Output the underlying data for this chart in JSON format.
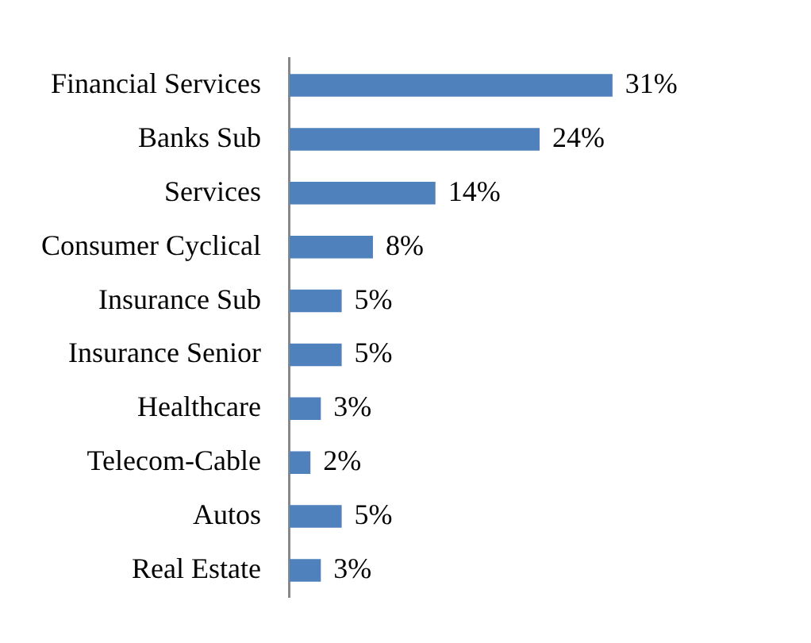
{
  "chart_data": {
    "type": "bar",
    "orientation": "horizontal",
    "categories": [
      "Financial Services",
      "Banks Sub",
      "Services",
      "Consumer Cyclical",
      "Insurance Sub",
      "Insurance Senior",
      "Healthcare",
      "Telecom-Cable",
      "Autos",
      "Real Estate"
    ],
    "values": [
      31,
      24,
      14,
      8,
      5,
      5,
      3,
      2,
      5,
      3
    ],
    "value_labels": [
      "31%",
      "24%",
      "14%",
      "8%",
      "5%",
      "5%",
      "3%",
      "2%",
      "5%",
      "3%"
    ],
    "color": "#4f81bd",
    "legend": false
  }
}
